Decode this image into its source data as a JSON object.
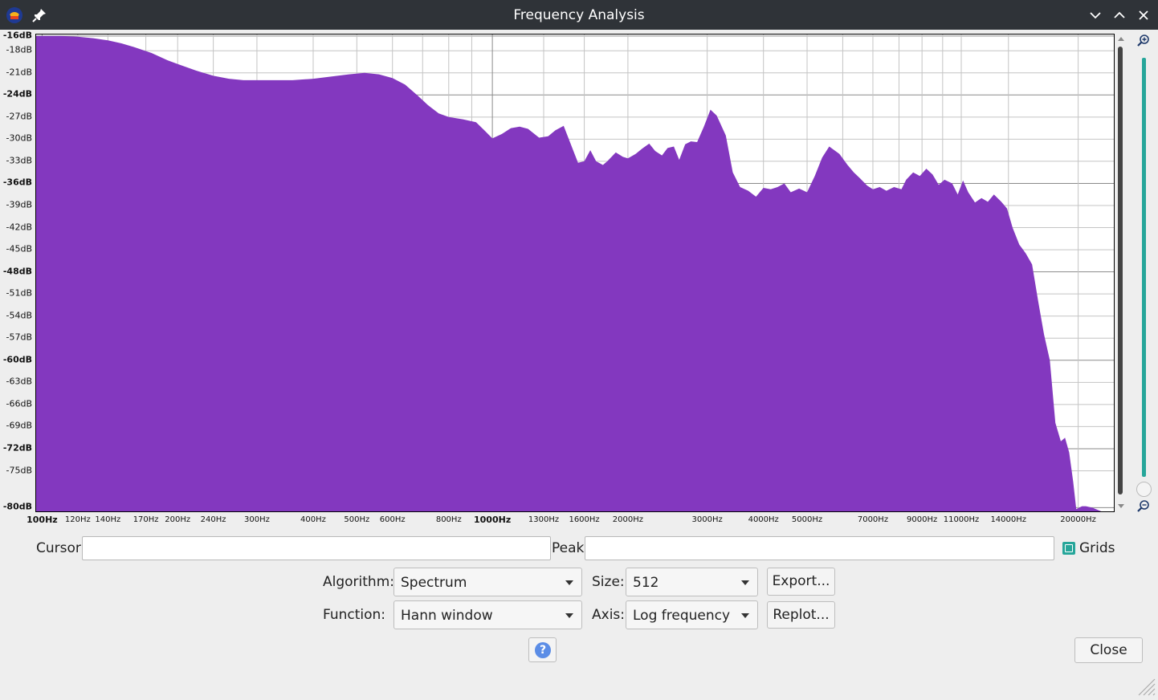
{
  "window": {
    "title": "Frequency Analysis"
  },
  "icons": {
    "app": "audacity-logo-icon",
    "pin": "pin-icon",
    "minimize": "chevron-down-icon",
    "maximize": "chevron-up-icon",
    "close": "close-icon",
    "zoom_in": "zoom-in-icon",
    "zoom_out": "zoom-out-icon",
    "help": "help-icon",
    "resize": "resize-grip-icon"
  },
  "colors": {
    "spectrum_fill": "#8338bf",
    "titlebar": "#2f3338",
    "slider_accent": "#26a69a",
    "checkbox": "#26a69a",
    "help_button": "#5b8de6"
  },
  "chart_data": {
    "type": "area",
    "x_scale": "log",
    "xlim": [
      97,
      24000
    ],
    "ylim": [
      -80.5,
      -15.8
    ],
    "grid": true,
    "y_tick_labels": [
      {
        "v": -16,
        "t": "-16dB",
        "bold": true
      },
      {
        "v": -18,
        "t": "-18dB",
        "bold": false
      },
      {
        "v": -21,
        "t": "-21dB",
        "bold": false
      },
      {
        "v": -24,
        "t": "-24dB",
        "bold": true
      },
      {
        "v": -27,
        "t": "-27dB",
        "bold": false
      },
      {
        "v": -30,
        "t": "-30dB",
        "bold": false
      },
      {
        "v": -33,
        "t": "-33dB",
        "bold": false
      },
      {
        "v": -36,
        "t": "-36dB",
        "bold": true
      },
      {
        "v": -39,
        "t": "-39dB",
        "bold": false
      },
      {
        "v": -42,
        "t": "-42dB",
        "bold": false
      },
      {
        "v": -45,
        "t": "-45dB",
        "bold": false
      },
      {
        "v": -48,
        "t": "-48dB",
        "bold": true
      },
      {
        "v": -51,
        "t": "-51dB",
        "bold": false
      },
      {
        "v": -54,
        "t": "-54dB",
        "bold": false
      },
      {
        "v": -57,
        "t": "-57dB",
        "bold": false
      },
      {
        "v": -60,
        "t": "-60dB",
        "bold": true
      },
      {
        "v": -63,
        "t": "-63dB",
        "bold": false
      },
      {
        "v": -66,
        "t": "-66dB",
        "bold": false
      },
      {
        "v": -69,
        "t": "-69dB",
        "bold": false
      },
      {
        "v": -72,
        "t": "-72dB",
        "bold": true
      },
      {
        "v": -75,
        "t": "-75dB",
        "bold": false
      },
      {
        "v": -80,
        "t": "-80dB",
        "bold": true
      }
    ],
    "x_tick_labels": [
      {
        "f": 100,
        "t": "100Hz",
        "bold": true
      },
      {
        "f": 120,
        "t": "120Hz",
        "bold": false
      },
      {
        "f": 140,
        "t": "140Hz",
        "bold": false
      },
      {
        "f": 170,
        "t": "170Hz",
        "bold": false
      },
      {
        "f": 200,
        "t": "200Hz",
        "bold": false
      },
      {
        "f": 240,
        "t": "240Hz",
        "bold": false
      },
      {
        "f": 300,
        "t": "300Hz",
        "bold": false
      },
      {
        "f": 400,
        "t": "400Hz",
        "bold": false
      },
      {
        "f": 500,
        "t": "500Hz",
        "bold": false
      },
      {
        "f": 600,
        "t": "600Hz",
        "bold": false
      },
      {
        "f": 800,
        "t": "800Hz",
        "bold": false
      },
      {
        "f": 1000,
        "t": "1000Hz",
        "bold": true
      },
      {
        "f": 1300,
        "t": "1300Hz",
        "bold": false
      },
      {
        "f": 1600,
        "t": "1600Hz",
        "bold": false
      },
      {
        "f": 2000,
        "t": "2000Hz",
        "bold": false
      },
      {
        "f": 3000,
        "t": "3000Hz",
        "bold": false
      },
      {
        "f": 4000,
        "t": "4000Hz",
        "bold": false
      },
      {
        "f": 5000,
        "t": "5000Hz",
        "bold": false
      },
      {
        "f": 7000,
        "t": "7000Hz",
        "bold": false
      },
      {
        "f": 9000,
        "t": "9000Hz",
        "bold": false
      },
      {
        "f": 11000,
        "t": "11000Hz",
        "bold": false
      },
      {
        "f": 14000,
        "t": "14000Hz",
        "bold": false
      },
      {
        "f": 20000,
        "t": "20000Hz",
        "bold": false
      }
    ],
    "x_grid_minor": [
      700,
      900,
      6000,
      8000,
      10000
    ],
    "series": [
      {
        "x": [
          97,
          100,
          110,
          120,
          130,
          140,
          150,
          160,
          175,
          190,
          200,
          220,
          240,
          260,
          280,
          300,
          330,
          360,
          400,
          440,
          480,
          520,
          560,
          600,
          640,
          680,
          720,
          760,
          800,
          860,
          920,
          960,
          1000,
          1050,
          1100,
          1150,
          1200,
          1270,
          1330,
          1380,
          1440,
          1500,
          1550,
          1600,
          1650,
          1700,
          1760,
          1800,
          1880,
          1950,
          2000,
          2080,
          2150,
          2230,
          2300,
          2380,
          2450,
          2530,
          2600,
          2680,
          2760,
          2850,
          2950,
          3050,
          3150,
          3300,
          3420,
          3550,
          3700,
          3850,
          4000,
          4150,
          4300,
          4450,
          4600,
          4800,
          5000,
          5200,
          5400,
          5600,
          5900,
          6150,
          6350,
          6550,
          6800,
          7000,
          7250,
          7500,
          7800,
          8100,
          8300,
          8600,
          8900,
          9200,
          9500,
          9800,
          10100,
          10500,
          10800,
          11100,
          11400,
          11800,
          12200,
          12600,
          13000,
          13500,
          13900,
          14300,
          14800,
          15300,
          15800,
          16300,
          16800,
          17300,
          17800,
          18300,
          18700,
          19100,
          19500,
          19800,
          20100,
          20400,
          20800,
          21500,
          22500,
          23500,
          24000
        ],
        "y": [
          -16.0,
          -16.0,
          -16.0,
          -16.1,
          -16.3,
          -16.6,
          -17.0,
          -17.5,
          -18.3,
          -19.3,
          -19.8,
          -20.7,
          -21.4,
          -21.8,
          -22.0,
          -22.0,
          -22.0,
          -22.0,
          -21.8,
          -21.5,
          -21.2,
          -21.0,
          -21.2,
          -21.7,
          -22.6,
          -24.0,
          -25.4,
          -26.5,
          -27.0,
          -27.3,
          -27.7,
          -28.8,
          -29.9,
          -29.3,
          -28.5,
          -28.3,
          -28.6,
          -29.8,
          -29.6,
          -28.8,
          -28.2,
          -31.0,
          -33.2,
          -33.0,
          -31.5,
          -33.0,
          -33.5,
          -33.0,
          -31.8,
          -32.4,
          -32.6,
          -32.0,
          -31.3,
          -30.6,
          -31.6,
          -32.2,
          -31.2,
          -31.0,
          -32.8,
          -30.7,
          -30.3,
          -30.4,
          -28.3,
          -26.0,
          -26.8,
          -29.5,
          -34.5,
          -36.5,
          -37.0,
          -37.8,
          -36.6,
          -36.8,
          -36.5,
          -36.0,
          -37.2,
          -36.7,
          -37.2,
          -35.0,
          -32.5,
          -31.0,
          -32.0,
          -33.5,
          -34.5,
          -35.3,
          -36.3,
          -36.8,
          -36.5,
          -37.0,
          -36.5,
          -36.8,
          -35.5,
          -34.5,
          -35.0,
          -34.0,
          -34.8,
          -36.2,
          -35.5,
          -36.0,
          -37.5,
          -35.6,
          -37.2,
          -38.6,
          -38.0,
          -38.5,
          -37.5,
          -38.5,
          -39.4,
          -42.0,
          -44.3,
          -45.5,
          -47.0,
          -52.0,
          -56.5,
          -60.0,
          -68.5,
          -71.0,
          -70.5,
          -72.5,
          -76.5,
          -80.2,
          -80.0,
          -79.8,
          -79.8,
          -80.0,
          -80.6,
          -81.0,
          -81.0
        ]
      }
    ]
  },
  "controls": {
    "cursor_label": "Cursor:",
    "cursor_value": "",
    "peak_label": "Peak:",
    "peak_value": "",
    "grids_label": "Grids",
    "algorithm_label": "Algorithm:",
    "algorithm_value": "Spectrum",
    "size_label": "Size:",
    "size_value": "512",
    "export_label": "Export...",
    "function_label": "Function:",
    "function_value": "Hann window",
    "axis_label": "Axis:",
    "axis_value": "Log frequency",
    "replot_label": "Replot...",
    "help_glyph": "?",
    "close_label": "Close"
  }
}
